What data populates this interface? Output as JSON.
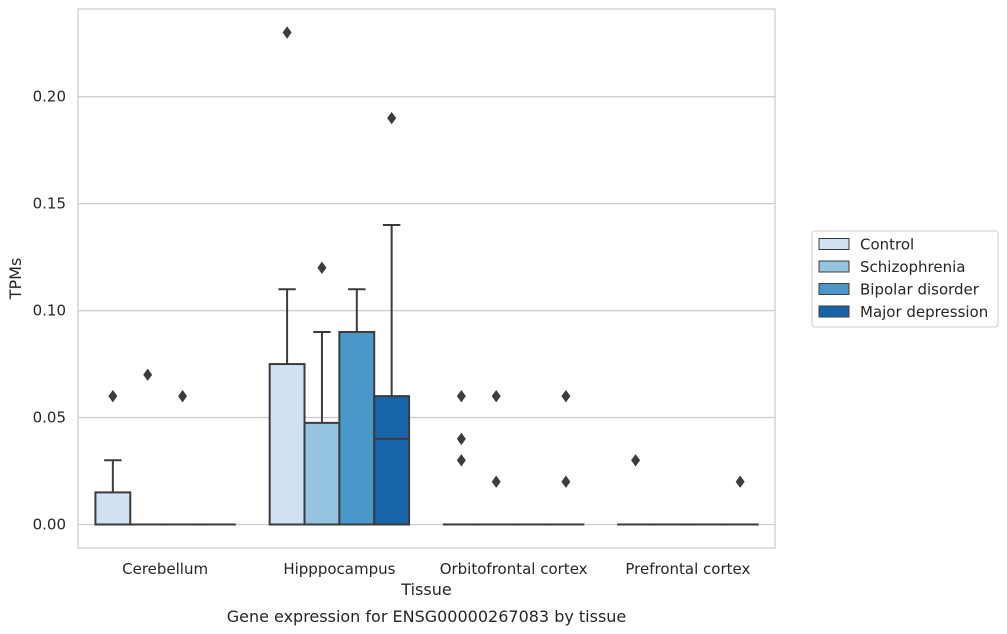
{
  "chart_data": {
    "type": "boxplot",
    "title": "",
    "caption": "Gene expression for ENSG00000267083 by tissue",
    "xlabel": "Tissue",
    "ylabel": "TPMs",
    "ylim": [
      -0.011,
      0.241
    ],
    "yticks": [
      0.0,
      0.05,
      0.1,
      0.15,
      0.2
    ],
    "ytick_labels": [
      "0.00",
      "0.05",
      "0.10",
      "0.15",
      "0.20"
    ],
    "grid": "horizontal",
    "legend_position": "right, outside plot area",
    "categories": [
      "Cerebellum",
      "Hipppocampus",
      "Orbitofrontal cortex",
      "Prefrontal cortex"
    ],
    "series": [
      {
        "name": "Control",
        "color": "#d0e1f2",
        "boxes": [
          {
            "q1": 0.0,
            "median": 0.0,
            "q3": 0.015,
            "whisker_low": 0.0,
            "whisker_high": 0.03,
            "outliers": [
              0.06
            ]
          },
          {
            "q1": 0.0,
            "median": 0.0,
            "q3": 0.075,
            "whisker_low": 0.0,
            "whisker_high": 0.11,
            "outliers": [
              0.23
            ]
          },
          {
            "q1": 0.0,
            "median": 0.0,
            "q3": 0.0,
            "whisker_low": 0.0,
            "whisker_high": 0.0,
            "outliers": [
              0.06,
              0.04,
              0.03
            ]
          },
          {
            "q1": 0.0,
            "median": 0.0,
            "q3": 0.0,
            "whisker_low": 0.0,
            "whisker_high": 0.0,
            "outliers": [
              0.03
            ]
          }
        ]
      },
      {
        "name": "Schizophrenia",
        "color": "#94c4df",
        "boxes": [
          {
            "q1": 0.0,
            "median": 0.0,
            "q3": 0.0,
            "whisker_low": 0.0,
            "whisker_high": 0.0,
            "outliers": [
              0.07
            ]
          },
          {
            "q1": 0.0,
            "median": 0.0,
            "q3": 0.0475,
            "whisker_low": 0.0,
            "whisker_high": 0.09,
            "outliers": [
              0.12
            ]
          },
          {
            "q1": 0.0,
            "median": 0.0,
            "q3": 0.0,
            "whisker_low": 0.0,
            "whisker_high": 0.0,
            "outliers": [
              0.06,
              0.02
            ]
          },
          {
            "q1": 0.0,
            "median": 0.0,
            "q3": 0.0,
            "whisker_low": 0.0,
            "whisker_high": 0.0,
            "outliers": []
          }
        ]
      },
      {
        "name": "Bipolar disorder",
        "color": "#4a98c9",
        "boxes": [
          {
            "q1": 0.0,
            "median": 0.0,
            "q3": 0.0,
            "whisker_low": 0.0,
            "whisker_high": 0.0,
            "outliers": [
              0.06
            ]
          },
          {
            "q1": 0.0,
            "median": 0.0,
            "q3": 0.09,
            "whisker_low": 0.0,
            "whisker_high": 0.11,
            "outliers": []
          },
          {
            "q1": 0.0,
            "median": 0.0,
            "q3": 0.0,
            "whisker_low": 0.0,
            "whisker_high": 0.0,
            "outliers": []
          },
          {
            "q1": 0.0,
            "median": 0.0,
            "q3": 0.0,
            "whisker_low": 0.0,
            "whisker_high": 0.0,
            "outliers": []
          }
        ]
      },
      {
        "name": "Major depression",
        "color": "#1764ab",
        "boxes": [
          {
            "q1": 0.0,
            "median": 0.0,
            "q3": 0.0,
            "whisker_low": 0.0,
            "whisker_high": 0.0,
            "outliers": []
          },
          {
            "q1": 0.0,
            "median": 0.04,
            "q3": 0.06,
            "whisker_low": 0.0,
            "whisker_high": 0.14,
            "outliers": [
              0.19
            ]
          },
          {
            "q1": 0.0,
            "median": 0.0,
            "q3": 0.0,
            "whisker_low": 0.0,
            "whisker_high": 0.0,
            "outliers": [
              0.06,
              0.02
            ]
          },
          {
            "q1": 0.0,
            "median": 0.0,
            "q3": 0.0,
            "whisker_low": 0.0,
            "whisker_high": 0.0,
            "outliers": [
              0.02
            ]
          }
        ]
      }
    ]
  }
}
